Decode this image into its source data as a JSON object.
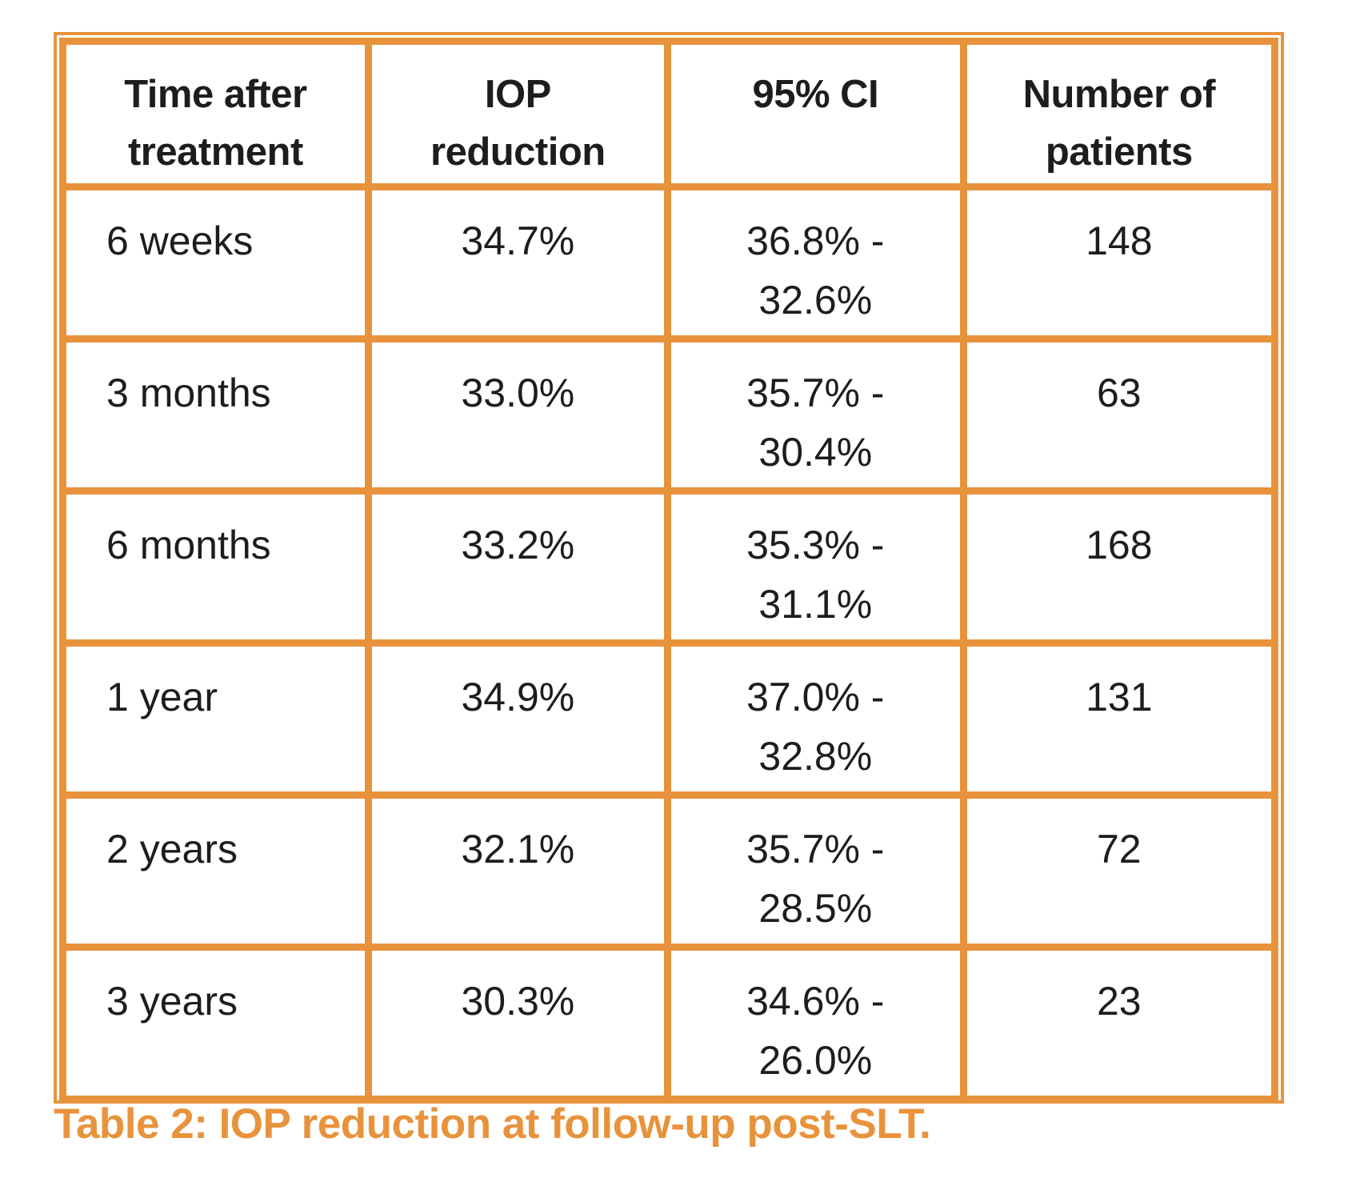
{
  "colors": {
    "accent_orange": "#E8933C",
    "text_black": "#1D1D1D",
    "background": "#FFFFFF"
  },
  "chart_data": {
    "type": "table",
    "caption": "Table 2: IOP reduction at follow-up post-SLT.",
    "columns": [
      "Time after treatment",
      "IOP reduction",
      "95% CI",
      "Number of patients"
    ],
    "header_lines": [
      [
        "Time after",
        "treatment"
      ],
      [
        "IOP",
        "reduction"
      ],
      [
        "95% CI"
      ],
      [
        "Number of",
        "patients"
      ]
    ],
    "rows": [
      {
        "time": "6 weeks",
        "iop": "34.7%",
        "ci_line1": "36.8% -",
        "ci_line2": "32.6%",
        "patients": "148"
      },
      {
        "time": "3 months",
        "iop": "33.0%",
        "ci_line1": "35.7% -",
        "ci_line2": "30.4%",
        "patients": "63"
      },
      {
        "time": "6 months",
        "iop": "33.2%",
        "ci_line1": "35.3% -",
        "ci_line2": "31.1%",
        "patients": "168"
      },
      {
        "time": "1 year",
        "iop": "34.9%",
        "ci_line1": "37.0% -",
        "ci_line2": "32.8%",
        "patients": "131"
      },
      {
        "time": "2 years",
        "iop": "32.1%",
        "ci_line1": "35.7% -",
        "ci_line2": "28.5%",
        "patients": "72"
      },
      {
        "time": "3 years",
        "iop": "30.3%",
        "ci_line1": "34.6% -",
        "ci_line2": "26.0%",
        "patients": "23"
      }
    ]
  }
}
